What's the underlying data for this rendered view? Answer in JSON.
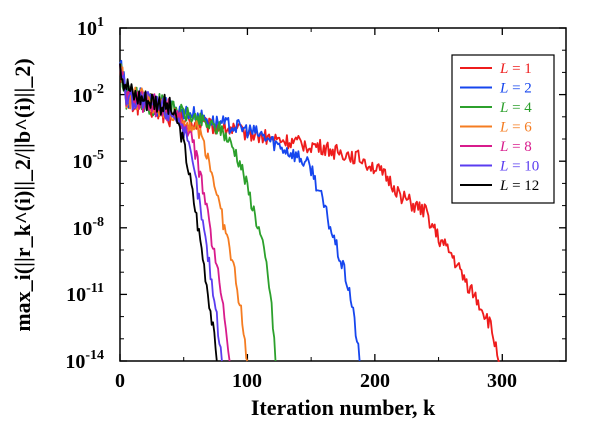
{
  "chart_data": {
    "type": "line",
    "xlabel": "Iteration number, k",
    "ylabel": "max_i(||r_k^(i)||_2/||b^(i)||_2)",
    "xlim": [
      0,
      350
    ],
    "ylim_exponent": [
      -14,
      1
    ],
    "y_scale": "log",
    "grid": false,
    "legend_position": "top-right",
    "x_ticks": [
      "0",
      "100",
      "200",
      "300"
    ],
    "y_ticks": [
      {
        "base": "10",
        "exp": "1"
      },
      {
        "base": "10",
        "exp": "-2"
      },
      {
        "base": "10",
        "exp": "-5"
      },
      {
        "base": "10",
        "exp": "-8"
      },
      {
        "base": "10",
        "exp": "-11"
      },
      {
        "base": "10",
        "exp": "-14"
      }
    ],
    "series": [
      {
        "name": "L = 1",
        "legend_var": "L",
        "legend_val": "= 1",
        "color": "#ee1c1c",
        "points": [
          [
            0,
            -0.6
          ],
          [
            5,
            -2.3
          ],
          [
            20,
            -2.4
          ],
          [
            40,
            -3.0
          ],
          [
            60,
            -3.3
          ],
          [
            80,
            -3.5
          ],
          [
            100,
            -3.7
          ],
          [
            120,
            -4.0
          ],
          [
            140,
            -4.2
          ],
          [
            160,
            -4.4
          ],
          [
            170,
            -4.6
          ],
          [
            180,
            -4.7
          ],
          [
            190,
            -4.9
          ],
          [
            200,
            -5.3
          ],
          [
            210,
            -5.8
          ],
          [
            220,
            -6.5
          ],
          [
            230,
            -7.0
          ],
          [
            240,
            -7.3
          ],
          [
            250,
            -8.5
          ],
          [
            260,
            -9.2
          ],
          [
            270,
            -10.3
          ],
          [
            280,
            -11.2
          ],
          [
            290,
            -12.3
          ],
          [
            298,
            -14
          ]
        ]
      },
      {
        "name": "L = 2",
        "legend_var": "L",
        "legend_val": "= 2",
        "color": "#1646ee",
        "points": [
          [
            0,
            -0.6
          ],
          [
            5,
            -2.1
          ],
          [
            20,
            -2.3
          ],
          [
            40,
            -2.6
          ],
          [
            60,
            -2.9
          ],
          [
            70,
            -3.2
          ],
          [
            80,
            -3.3
          ],
          [
            95,
            -3.5
          ],
          [
            110,
            -3.8
          ],
          [
            125,
            -4.3
          ],
          [
            140,
            -4.8
          ],
          [
            150,
            -5.3
          ],
          [
            160,
            -7.0
          ],
          [
            170,
            -8.9
          ],
          [
            175,
            -9.8
          ],
          [
            180,
            -10.8
          ],
          [
            185,
            -12.6
          ],
          [
            188,
            -14
          ]
        ]
      },
      {
        "name": "L = 4",
        "legend_var": "L",
        "legend_val": "= 4",
        "color": "#2ca02c",
        "points": [
          [
            0,
            -0.6
          ],
          [
            5,
            -2.1
          ],
          [
            20,
            -2.3
          ],
          [
            40,
            -2.6
          ],
          [
            60,
            -3.1
          ],
          [
            70,
            -3.4
          ],
          [
            80,
            -3.6
          ],
          [
            90,
            -4.5
          ],
          [
            95,
            -5.2
          ],
          [
            100,
            -6.2
          ],
          [
            105,
            -7.2
          ],
          [
            110,
            -8.3
          ],
          [
            115,
            -9.7
          ],
          [
            118,
            -11.0
          ],
          [
            121,
            -13.0
          ],
          [
            122,
            -14
          ]
        ]
      },
      {
        "name": "L = 6",
        "legend_var": "L",
        "legend_val": "= 6",
        "color": "#f57c21",
        "points": [
          [
            0,
            -0.6
          ],
          [
            5,
            -2.1
          ],
          [
            20,
            -2.3
          ],
          [
            40,
            -2.8
          ],
          [
            50,
            -3.2
          ],
          [
            60,
            -3.5
          ],
          [
            65,
            -4.0
          ],
          [
            70,
            -5.0
          ],
          [
            75,
            -6.2
          ],
          [
            80,
            -7.5
          ],
          [
            85,
            -8.7
          ],
          [
            90,
            -10.0
          ],
          [
            95,
            -11.8
          ],
          [
            98,
            -13.2
          ],
          [
            100,
            -14
          ]
        ]
      },
      {
        "name": "L = 8",
        "legend_var": "L",
        "legend_val": "= 8",
        "color": "#d81b8c",
        "points": [
          [
            0,
            -0.6
          ],
          [
            5,
            -2.1
          ],
          [
            20,
            -2.3
          ],
          [
            40,
            -2.7
          ],
          [
            50,
            -3.3
          ],
          [
            55,
            -3.8
          ],
          [
            60,
            -4.8
          ],
          [
            65,
            -6.2
          ],
          [
            70,
            -7.8
          ],
          [
            75,
            -9.5
          ],
          [
            80,
            -11.0
          ],
          [
            84,
            -12.8
          ],
          [
            86,
            -14
          ]
        ]
      },
      {
        "name": "L = 10",
        "legend_var": "L",
        "legend_val": "= 10",
        "color": "#5a3cf0",
        "points": [
          [
            0,
            -0.6
          ],
          [
            5,
            -2.1
          ],
          [
            20,
            -2.3
          ],
          [
            35,
            -2.6
          ],
          [
            45,
            -3.0
          ],
          [
            50,
            -3.6
          ],
          [
            55,
            -4.6
          ],
          [
            60,
            -6.0
          ],
          [
            65,
            -7.8
          ],
          [
            70,
            -9.6
          ],
          [
            74,
            -11.2
          ],
          [
            78,
            -13.0
          ],
          [
            80,
            -14
          ]
        ]
      },
      {
        "name": "L = 12",
        "legend_var": "L",
        "legend_val": "= 12",
        "color": "#000000",
        "points": [
          [
            0,
            -0.6
          ],
          [
            3,
            -1.3
          ],
          [
            10,
            -2.0
          ],
          [
            20,
            -2.2
          ],
          [
            30,
            -2.3
          ],
          [
            40,
            -2.7
          ],
          [
            45,
            -3.2
          ],
          [
            50,
            -4.2
          ],
          [
            55,
            -5.8
          ],
          [
            60,
            -7.5
          ],
          [
            65,
            -9.3
          ],
          [
            70,
            -11.3
          ],
          [
            74,
            -13.0
          ],
          [
            76,
            -14
          ]
        ]
      }
    ]
  }
}
